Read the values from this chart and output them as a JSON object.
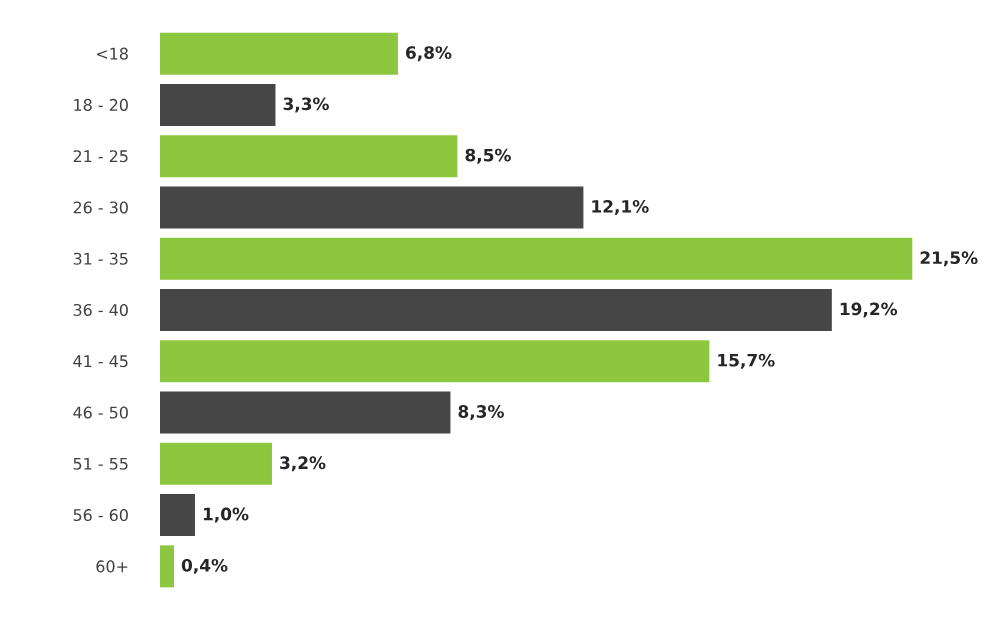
{
  "chart_data": {
    "type": "bar",
    "orientation": "horizontal",
    "categories": [
      "<18",
      "18 - 20",
      "21 - 25",
      "26 - 30",
      "31 - 35",
      "36 - 40",
      "41 - 45",
      "46 - 50",
      "51 - 55",
      "56 - 60",
      "60+"
    ],
    "values": [
      6.8,
      3.3,
      8.5,
      12.1,
      21.5,
      19.2,
      15.7,
      8.3,
      3.2,
      1.0,
      0.4
    ],
    "value_labels": [
      "6,8%",
      "3,3%",
      "8,5%",
      "12,1%",
      "21,5%",
      "19,2%",
      "15,7%",
      "8,3%",
      "3,2%",
      "1,0%",
      "0,4%"
    ],
    "colors": [
      "#8dc63f",
      "#464646",
      "#8dc63f",
      "#464646",
      "#8dc63f",
      "#464646",
      "#8dc63f",
      "#464646",
      "#8dc63f",
      "#464646",
      "#8dc63f"
    ]
  }
}
